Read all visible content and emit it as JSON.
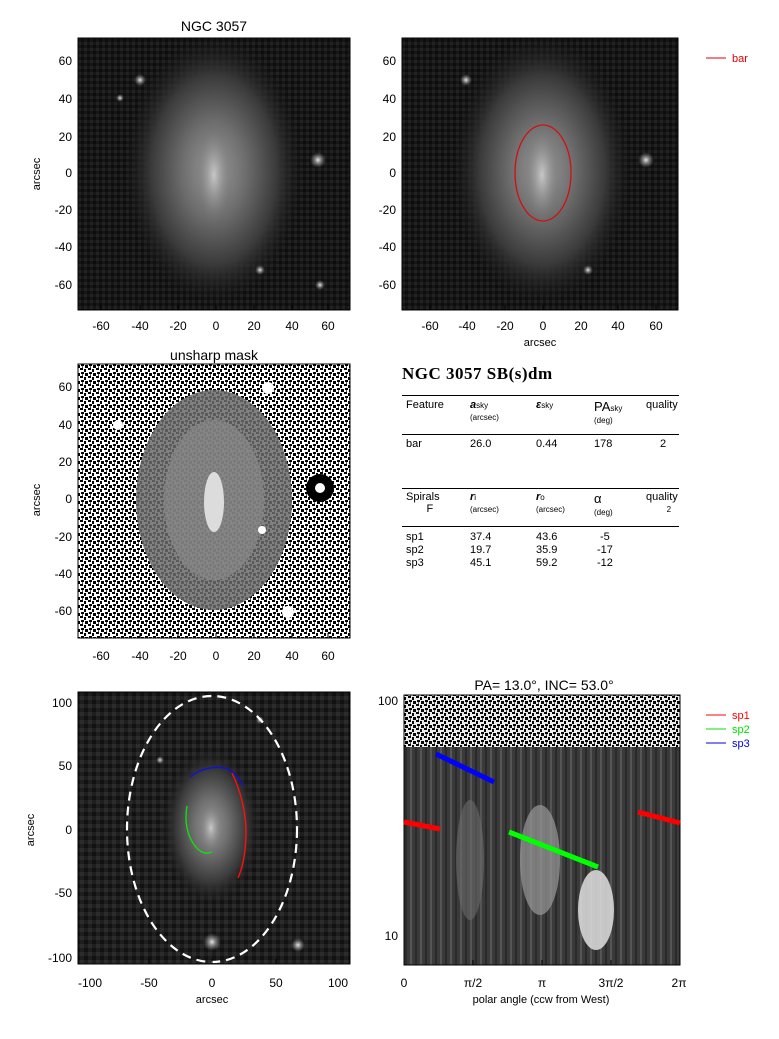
{
  "panels": {
    "top_left": {
      "title": "NGC 3057",
      "ylabel": "arcsec",
      "x_ticks": [
        "-60",
        "-40",
        "-20",
        "0",
        "20",
        "40",
        "60"
      ],
      "y_ticks": [
        "60",
        "40",
        "20",
        "0",
        "-20",
        "-40",
        "-60"
      ]
    },
    "top_right": {
      "xlabel": "arcsec",
      "legend": {
        "label": "bar",
        "color": "#e00000"
      },
      "x_ticks": [
        "-60",
        "-40",
        "-20",
        "0",
        "20",
        "40",
        "60"
      ],
      "y_ticks": [
        "60",
        "40",
        "20",
        "0",
        "-20",
        "-40",
        "-60"
      ]
    },
    "mid_left": {
      "title": "unsharp mask",
      "ylabel": "arcsec",
      "x_ticks": [
        "-60",
        "-40",
        "-20",
        "0",
        "20",
        "40",
        "60"
      ],
      "y_ticks": [
        "60",
        "40",
        "20",
        "0",
        "-20",
        "-40",
        "-60"
      ]
    },
    "bottom_left": {
      "xlabel": "arcsec",
      "ylabel": "arcsec",
      "x_ticks": [
        "-100",
        "-50",
        "0",
        "50",
        "100"
      ],
      "y_ticks": [
        "100",
        "50",
        "0",
        "-50",
        "-100"
      ]
    },
    "bottom_right": {
      "title": "PA=  13.0°, INC=  53.0°",
      "xlabel": "polar angle (ccw from West)",
      "x_ticks": [
        "0",
        "π/2",
        "π",
        "3π/2",
        "2π"
      ],
      "y_ticks": [
        "100",
        "10"
      ],
      "legend": [
        {
          "label": "sp1",
          "color": "#ff0000"
        },
        {
          "label": "sp2",
          "color": "#00e000"
        },
        {
          "label": "sp3",
          "color": "#0000e0"
        }
      ]
    }
  },
  "table": {
    "heading": "NGC 3057  SB(s)dm",
    "bar_header": {
      "c1": "Feature",
      "c2": "a",
      "c2sub": "sky",
      "c2unit": "(arcsec)",
      "c3": "ε",
      "c3sub": "sky",
      "c4": "PA",
      "c4sub": "sky",
      "c4unit": "(deg)",
      "c5": "quality"
    },
    "bar_row": {
      "c1": "bar",
      "c2": "26.0",
      "c3": "0.44",
      "c4": "178",
      "c5": "2"
    },
    "sp_header": {
      "c1": "Spirals",
      "c1b": "F",
      "c2": "r",
      "c2sub": "i",
      "c2unit": "(arcsec)",
      "c3": "r",
      "c3sub": "o",
      "c3unit": "(arcsec)",
      "c4": "α",
      "c4unit": "(deg)",
      "c5": "quality",
      "c5b": "2"
    },
    "sp_rows": [
      {
        "name": "sp1",
        "ri": "37.4",
        "ro": "43.6",
        "alpha": "-5"
      },
      {
        "name": "sp2",
        "ri": "19.7",
        "ro": "35.9",
        "alpha": "-17"
      },
      {
        "name": "sp3",
        "ri": "45.1",
        "ro": "59.2",
        "alpha": "-12"
      }
    ]
  }
}
